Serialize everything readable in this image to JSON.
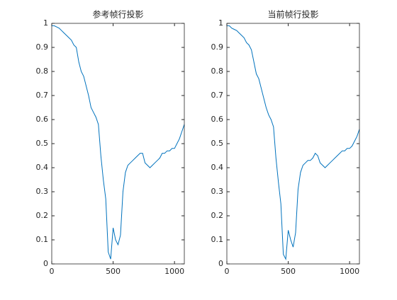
{
  "chart_data": [
    {
      "type": "line",
      "title": "参考帧行投影",
      "x": [
        0,
        20,
        40,
        60,
        80,
        100,
        120,
        140,
        160,
        180,
        200,
        220,
        240,
        260,
        280,
        300,
        320,
        340,
        360,
        380,
        400,
        420,
        440,
        460,
        480,
        500,
        520,
        540,
        560,
        580,
        600,
        620,
        640,
        660,
        680,
        700,
        720,
        740,
        760,
        780,
        800,
        820,
        840,
        860,
        880,
        900,
        920,
        940,
        960,
        980,
        1000,
        1020,
        1040,
        1060,
        1080
      ],
      "series": [
        {
          "color": "#0072bd",
          "values": [
            0.99,
            0.99,
            0.985,
            0.98,
            0.97,
            0.96,
            0.95,
            0.94,
            0.93,
            0.91,
            0.9,
            0.84,
            0.8,
            0.78,
            0.74,
            0.7,
            0.65,
            0.63,
            0.61,
            0.58,
            0.45,
            0.35,
            0.27,
            0.05,
            0.02,
            0.15,
            0.1,
            0.08,
            0.12,
            0.3,
            0.38,
            0.41,
            0.42,
            0.43,
            0.44,
            0.45,
            0.46,
            0.46,
            0.42,
            0.41,
            0.4,
            0.41,
            0.42,
            0.43,
            0.44,
            0.46,
            0.46,
            0.47,
            0.47,
            0.48,
            0.48,
            0.5,
            0.52,
            0.55,
            0.58
          ]
        }
      ],
      "xlim": [
        0,
        1080
      ],
      "xticks": [
        0,
        500,
        1000
      ],
      "ylim": [
        0,
        1
      ],
      "yticks": [
        0,
        0.1,
        0.2,
        0.3,
        0.4,
        0.5,
        0.6,
        0.7,
        0.8,
        0.9,
        1
      ]
    },
    {
      "type": "line",
      "title": "当前帧行投影",
      "x": [
        0,
        20,
        40,
        60,
        80,
        100,
        120,
        140,
        160,
        180,
        200,
        220,
        240,
        260,
        280,
        300,
        320,
        340,
        360,
        380,
        400,
        420,
        440,
        460,
        480,
        500,
        520,
        540,
        560,
        580,
        600,
        620,
        640,
        660,
        680,
        700,
        720,
        740,
        760,
        780,
        800,
        820,
        840,
        860,
        880,
        900,
        920,
        940,
        960,
        980,
        1000,
        1020,
        1040,
        1060,
        1080
      ],
      "series": [
        {
          "color": "#0072bd",
          "values": [
            0.99,
            0.99,
            0.98,
            0.975,
            0.97,
            0.96,
            0.95,
            0.94,
            0.92,
            0.91,
            0.89,
            0.84,
            0.79,
            0.77,
            0.73,
            0.69,
            0.65,
            0.62,
            0.6,
            0.57,
            0.44,
            0.34,
            0.25,
            0.04,
            0.02,
            0.14,
            0.1,
            0.07,
            0.13,
            0.31,
            0.38,
            0.41,
            0.42,
            0.43,
            0.43,
            0.44,
            0.46,
            0.45,
            0.42,
            0.41,
            0.4,
            0.41,
            0.42,
            0.43,
            0.44,
            0.45,
            0.46,
            0.47,
            0.47,
            0.48,
            0.48,
            0.49,
            0.51,
            0.53,
            0.56
          ]
        }
      ],
      "xlim": [
        0,
        1080
      ],
      "xticks": [
        0,
        500,
        1000
      ],
      "ylim": [
        0,
        1
      ],
      "yticks": [
        0,
        0.1,
        0.2,
        0.3,
        0.4,
        0.5,
        0.6,
        0.7,
        0.8,
        0.9,
        1
      ]
    }
  ]
}
